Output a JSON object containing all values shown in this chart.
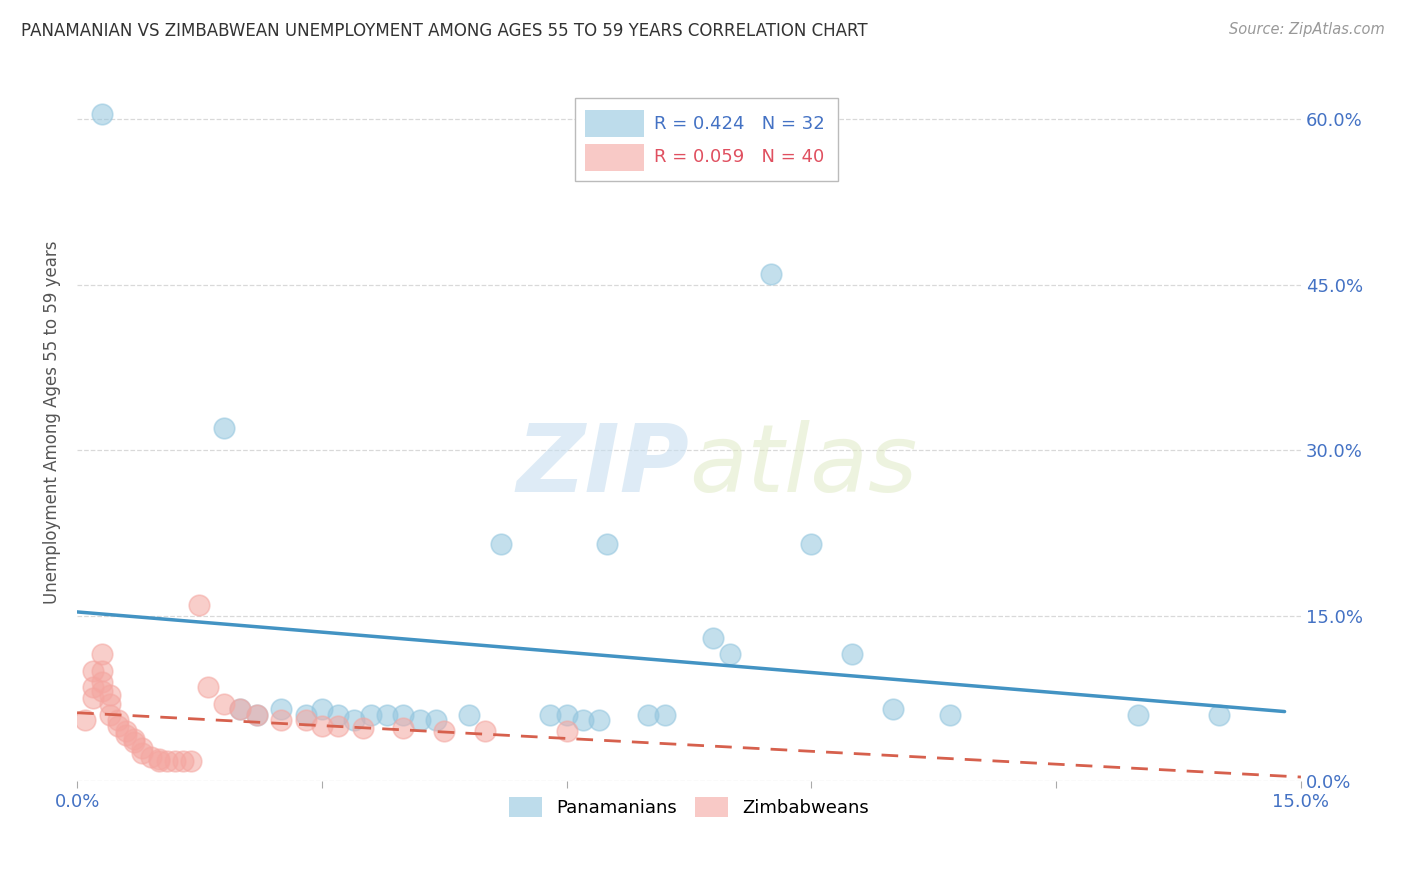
{
  "title": "PANAMANIAN VS ZIMBABWEAN UNEMPLOYMENT AMONG AGES 55 TO 59 YEARS CORRELATION CHART",
  "source": "Source: ZipAtlas.com",
  "ylabel": "Unemployment Among Ages 55 to 59 years",
  "xlim": [
    0.0,
    0.15
  ],
  "ylim": [
    0.0,
    0.65
  ],
  "xticks": [
    0.0,
    0.03,
    0.06,
    0.09,
    0.12,
    0.15
  ],
  "yticks": [
    0.0,
    0.15,
    0.3,
    0.45,
    0.6
  ],
  "ytick_labels_right": [
    "0.0%",
    "15.0%",
    "30.0%",
    "45.0%",
    "60.0%"
  ],
  "xtick_labels": [
    "0.0%",
    "",
    "",
    "",
    "",
    "15.0%"
  ],
  "pan_color": "#92c5de",
  "zim_color": "#f4a6a0",
  "pan_line_color": "#4393c3",
  "zim_line_color": "#d6604d",
  "watermark_zip": "ZIP",
  "watermark_atlas": "atlas",
  "background_color": "#ffffff",
  "grid_color": "#d0d0d0",
  "pan_points": [
    [
      0.003,
      0.605
    ],
    [
      0.018,
      0.32
    ],
    [
      0.02,
      0.065
    ],
    [
      0.022,
      0.06
    ],
    [
      0.025,
      0.065
    ],
    [
      0.028,
      0.06
    ],
    [
      0.03,
      0.065
    ],
    [
      0.032,
      0.06
    ],
    [
      0.034,
      0.055
    ],
    [
      0.036,
      0.06
    ],
    [
      0.038,
      0.06
    ],
    [
      0.04,
      0.06
    ],
    [
      0.042,
      0.055
    ],
    [
      0.044,
      0.055
    ],
    [
      0.048,
      0.06
    ],
    [
      0.052,
      0.215
    ],
    [
      0.058,
      0.06
    ],
    [
      0.06,
      0.06
    ],
    [
      0.062,
      0.055
    ],
    [
      0.064,
      0.055
    ],
    [
      0.065,
      0.215
    ],
    [
      0.07,
      0.06
    ],
    [
      0.072,
      0.06
    ],
    [
      0.078,
      0.13
    ],
    [
      0.08,
      0.115
    ],
    [
      0.085,
      0.46
    ],
    [
      0.09,
      0.215
    ],
    [
      0.095,
      0.115
    ],
    [
      0.1,
      0.065
    ],
    [
      0.107,
      0.06
    ],
    [
      0.13,
      0.06
    ],
    [
      0.14,
      0.06
    ]
  ],
  "zim_points": [
    [
      0.001,
      0.055
    ],
    [
      0.002,
      0.1
    ],
    [
      0.002,
      0.085
    ],
    [
      0.002,
      0.075
    ],
    [
      0.003,
      0.115
    ],
    [
      0.003,
      0.1
    ],
    [
      0.003,
      0.09
    ],
    [
      0.003,
      0.082
    ],
    [
      0.004,
      0.078
    ],
    [
      0.004,
      0.07
    ],
    [
      0.004,
      0.06
    ],
    [
      0.005,
      0.055
    ],
    [
      0.005,
      0.05
    ],
    [
      0.006,
      0.045
    ],
    [
      0.006,
      0.042
    ],
    [
      0.007,
      0.038
    ],
    [
      0.007,
      0.035
    ],
    [
      0.008,
      0.03
    ],
    [
      0.008,
      0.025
    ],
    [
      0.009,
      0.022
    ],
    [
      0.01,
      0.02
    ],
    [
      0.01,
      0.018
    ],
    [
      0.011,
      0.018
    ],
    [
      0.012,
      0.018
    ],
    [
      0.013,
      0.018
    ],
    [
      0.014,
      0.018
    ],
    [
      0.015,
      0.16
    ],
    [
      0.016,
      0.085
    ],
    [
      0.018,
      0.07
    ],
    [
      0.02,
      0.065
    ],
    [
      0.022,
      0.06
    ],
    [
      0.025,
      0.055
    ],
    [
      0.028,
      0.055
    ],
    [
      0.03,
      0.05
    ],
    [
      0.032,
      0.05
    ],
    [
      0.035,
      0.048
    ],
    [
      0.04,
      0.048
    ],
    [
      0.045,
      0.045
    ],
    [
      0.05,
      0.045
    ],
    [
      0.06,
      0.045
    ]
  ]
}
